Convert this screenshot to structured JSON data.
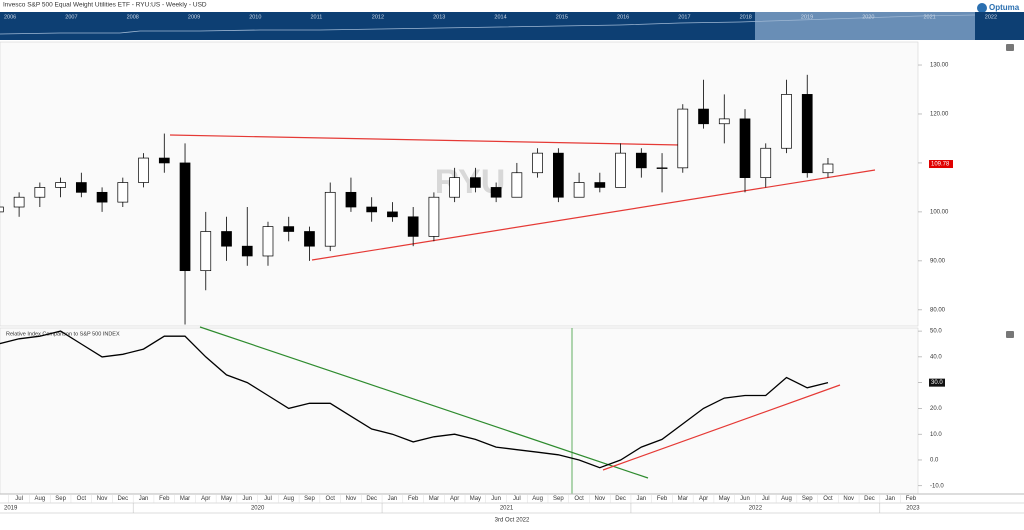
{
  "title": "Invesco S&P 500 Equal Weight Utilities ETF - RYU:US - Weekly - USD",
  "logo": "Optuma",
  "date_label": "3rd Oct 2022",
  "navigator": {
    "years": [
      "2006",
      "2007",
      "2008",
      "2009",
      "2010",
      "2011",
      "2012",
      "2013",
      "2014",
      "2015",
      "2016",
      "2017",
      "2018",
      "2019",
      "2020",
      "2021",
      "2022"
    ]
  },
  "chart_data": [
    {
      "type": "candlestick",
      "watermark": "RYU",
      "categories": [
        null,
        "Jul",
        "Aug",
        "Sep",
        "Oct",
        "Nov",
        "Dec",
        "Jan",
        "Feb",
        "Mar",
        "Apr",
        "May",
        "Jun",
        "Jul",
        "Aug",
        "Sep",
        "Oct",
        "Nov",
        "Dec",
        "Jan",
        "Feb",
        "Mar",
        "Apr",
        "May",
        "Jun",
        "Jul",
        "Aug",
        "Sep",
        "Oct",
        "Nov",
        "Dec",
        "Jan",
        "Feb",
        "Mar",
        "Apr",
        "May",
        "Jun",
        "Jul",
        "Aug",
        "Sep",
        "Oct",
        "Nov",
        "Dec",
        "Jan",
        "Feb"
      ],
      "years": [
        "2019",
        "2020",
        "2021",
        "2022",
        "2023"
      ],
      "open": [
        100,
        101,
        103,
        105,
        106,
        104,
        102,
        106,
        111,
        110,
        88,
        96,
        93,
        91,
        97,
        96,
        93,
        104,
        101,
        100,
        99,
        95,
        103,
        107,
        105,
        103,
        108,
        112,
        103,
        106,
        105,
        112,
        109,
        109,
        121,
        118,
        119,
        107,
        113,
        124,
        108,
        null,
        null,
        null,
        null
      ],
      "high": [
        102,
        104,
        106,
        107,
        108,
        105,
        107,
        112,
        116,
        114,
        100,
        99,
        101,
        98,
        99,
        97,
        106,
        107,
        103,
        102,
        101,
        104,
        109,
        109,
        106,
        110,
        113,
        113,
        108,
        108,
        114,
        113,
        112,
        122,
        127,
        124,
        121,
        114,
        127,
        128,
        111,
        null,
        null,
        null,
        null
      ],
      "low": [
        99,
        99,
        101,
        103,
        103,
        100,
        101,
        105,
        108,
        77,
        84,
        90,
        89,
        89,
        94,
        90,
        92,
        100,
        98,
        98,
        93,
        94,
        102,
        104,
        102,
        103,
        107,
        102,
        103,
        104,
        105,
        107,
        104,
        108,
        117,
        114,
        104,
        105,
        112,
        107,
        107,
        null,
        null,
        null,
        null
      ],
      "close": [
        101,
        103,
        105,
        106,
        104,
        102,
        106,
        111,
        110,
        88,
        96,
        93,
        91,
        97,
        96,
        93,
        104,
        101,
        100,
        99,
        95,
        103,
        107,
        105,
        103,
        108,
        112,
        103,
        106,
        105,
        112,
        109,
        109,
        121,
        118,
        119,
        107,
        113,
        124,
        108,
        109.78,
        null,
        null,
        null,
        null
      ],
      "last_label": "109.78",
      "ylim": [
        76.7,
        134.7
      ],
      "yticks": [
        {
          "value": 80,
          "label": "80.00"
        },
        {
          "value": 90,
          "label": "90.00"
        },
        {
          "value": 100,
          "label": "100.00"
        },
        {
          "value": 110,
          "label": "110.00"
        },
        {
          "value": 120,
          "label": "120.00"
        },
        {
          "value": 130,
          "label": "130.00"
        }
      ]
    },
    {
      "type": "line",
      "title": "Relative Index Comparison to S&P 500 INDEX",
      "color": "#000000",
      "values": [
        45,
        47,
        48,
        50,
        45,
        40,
        41,
        43,
        48,
        48,
        40,
        33,
        30,
        25,
        20,
        22,
        22,
        17,
        12,
        10,
        7,
        9,
        10,
        8,
        5,
        4,
        3,
        2,
        0,
        -3,
        0,
        5,
        8,
        14,
        20,
        24,
        25,
        25,
        32,
        28,
        30,
        null,
        null,
        null,
        null
      ],
      "last_label": "30.0",
      "ylim": [
        -13.2,
        51.2
      ],
      "yticks": [
        {
          "value": -10,
          "label": "-10.0"
        },
        {
          "value": 0,
          "label": "0.0"
        },
        {
          "value": 10,
          "label": "10.0"
        },
        {
          "value": 20,
          "label": "20.0"
        },
        {
          "value": 30,
          "label": "30.0"
        },
        {
          "value": 40,
          "label": "40.0"
        },
        {
          "value": 50,
          "label": "50.0"
        }
      ]
    }
  ]
}
